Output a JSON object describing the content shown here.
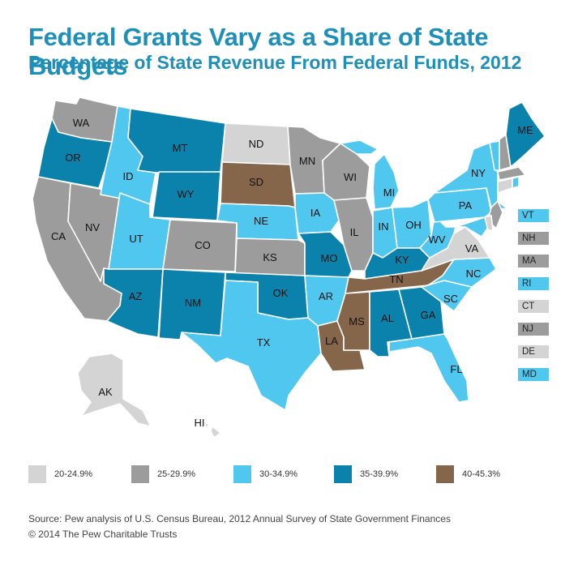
{
  "title": "Federal Grants Vary as a Share of State Budgets",
  "subtitle": "Percentage of State Revenue From Federal Funds, 2012",
  "colors": {
    "c1": "#d4d4d4",
    "c2": "#9c9c9c",
    "c3": "#4fc7ef",
    "c4": "#0a82ab",
    "c5": "#86664a"
  },
  "legend": [
    {
      "range": "20-24.9%",
      "color": "#d4d4d4"
    },
    {
      "range": "25-29.9%",
      "color": "#9c9c9c"
    },
    {
      "range": "30-34.9%",
      "color": "#4fc7ef"
    },
    {
      "range": "35-39.9%",
      "color": "#0a82ab"
    },
    {
      "range": "40-45.3%",
      "color": "#86664a"
    }
  ],
  "states": {
    "WA": {
      "cat": 1
    },
    "OR": {
      "cat": 3
    },
    "CA": {
      "cat": 1
    },
    "NV": {
      "cat": 1
    },
    "ID": {
      "cat": 2
    },
    "MT": {
      "cat": 3
    },
    "WY": {
      "cat": 3
    },
    "UT": {
      "cat": 2
    },
    "AZ": {
      "cat": 3
    },
    "NM": {
      "cat": 3
    },
    "CO": {
      "cat": 1
    },
    "ND": {
      "cat": 0
    },
    "SD": {
      "cat": 4
    },
    "NE": {
      "cat": 2
    },
    "KS": {
      "cat": 1
    },
    "OK": {
      "cat": 3
    },
    "TX": {
      "cat": 2
    },
    "MN": {
      "cat": 1
    },
    "IA": {
      "cat": 2
    },
    "MO": {
      "cat": 3
    },
    "AR": {
      "cat": 2
    },
    "LA": {
      "cat": 4
    },
    "WI": {
      "cat": 1
    },
    "IL": {
      "cat": 1
    },
    "MI": {
      "cat": 2
    },
    "IN": {
      "cat": 2
    },
    "OH": {
      "cat": 2
    },
    "KY": {
      "cat": 3
    },
    "TN": {
      "cat": 4
    },
    "MS": {
      "cat": 4
    },
    "AL": {
      "cat": 3
    },
    "GA": {
      "cat": 3
    },
    "FL": {
      "cat": 2
    },
    "SC": {
      "cat": 2
    },
    "NC": {
      "cat": 2
    },
    "VA": {
      "cat": 0
    },
    "WV": {
      "cat": 2
    },
    "PA": {
      "cat": 2
    },
    "NY": {
      "cat": 2
    },
    "ME": {
      "cat": 3
    },
    "AK": {
      "cat": 0
    },
    "HI": {
      "cat": 0
    }
  },
  "northeast": [
    {
      "abbr": "VT",
      "color": "#4fc7ef"
    },
    {
      "abbr": "NH",
      "color": "#9c9c9c"
    },
    {
      "abbr": "MA",
      "color": "#9c9c9c"
    },
    {
      "abbr": "RI",
      "color": "#4fc7ef"
    },
    {
      "abbr": "CT",
      "color": "#d4d4d4"
    },
    {
      "abbr": "NJ",
      "color": "#9c9c9c"
    },
    {
      "abbr": "DE",
      "color": "#d4d4d4"
    },
    {
      "abbr": "MD",
      "color": "#4fc7ef"
    }
  ],
  "source": "Source: Pew analysis of U.S. Census Bureau, 2012 Annual Survey of State Government Finances",
  "copyright": "© 2014 The Pew Charitable Trusts"
}
